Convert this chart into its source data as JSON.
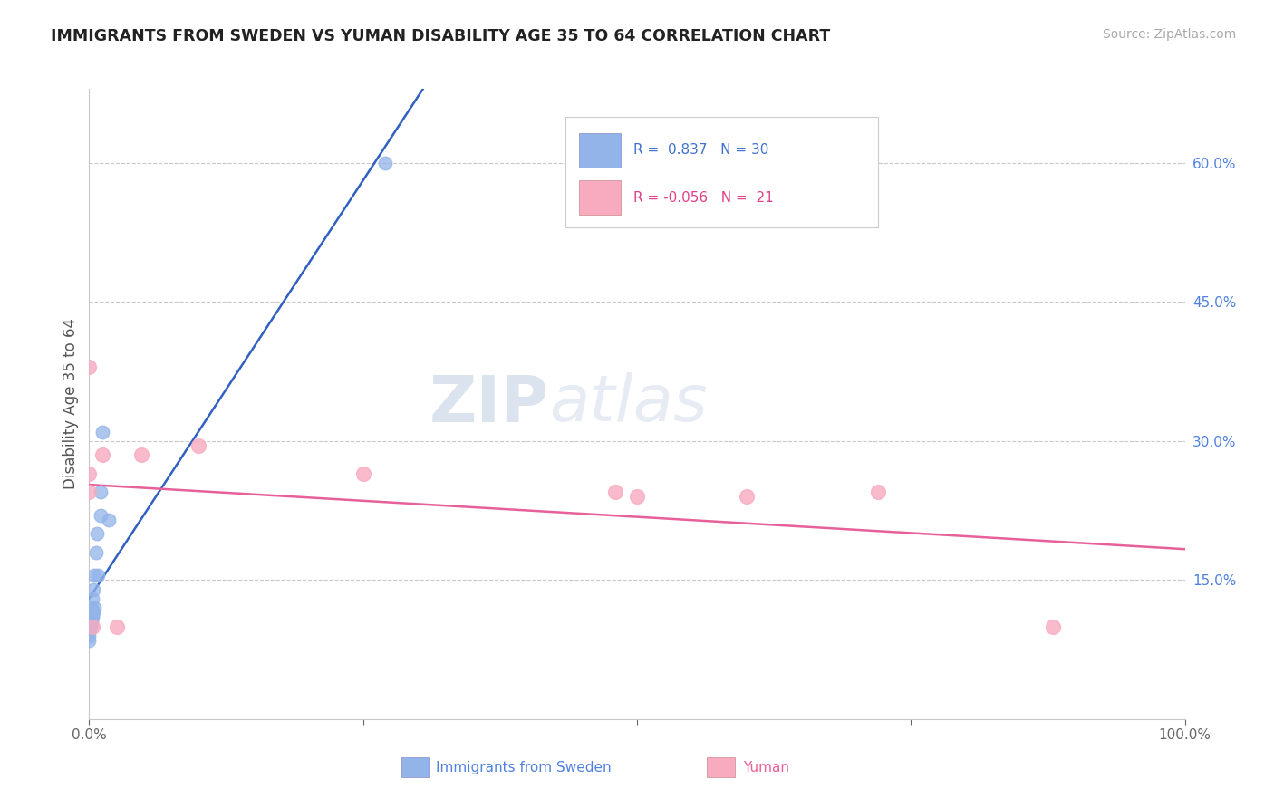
{
  "title": "IMMIGRANTS FROM SWEDEN VS YUMAN DISABILITY AGE 35 TO 64 CORRELATION CHART",
  "source": "Source: ZipAtlas.com",
  "ylabel": "Disability Age 35 to 64",
  "xlim": [
    0,
    1.0
  ],
  "ylim": [
    0,
    0.68
  ],
  "yticks_right": [
    0.15,
    0.3,
    0.45,
    0.6
  ],
  "ytick_labels_right": [
    "15.0%",
    "30.0%",
    "45.0%",
    "60.0%"
  ],
  "watermark_zip": "ZIP",
  "watermark_atlas": "atlas",
  "blue_color": "#92B4E8",
  "pink_color": "#F8AABF",
  "blue_line_color": "#3060C0",
  "pink_line_color": "#E8609A",
  "background_color": "#FFFFFF",
  "grid_color": "#C8C8C8",
  "title_color": "#222222",
  "source_color": "#AAAAAA",
  "legend_text_blue": "#4070D0",
  "legend_text_pink": "#E0408A",
  "right_tick_color": "#5080E0",
  "sweden_x": [
    0.0,
    0.0,
    0.0,
    0.0,
    0.0,
    0.0,
    0.001,
    0.001,
    0.001,
    0.001,
    0.001,
    0.002,
    0.002,
    0.002,
    0.002,
    0.003,
    0.003,
    0.003,
    0.004,
    0.004,
    0.005,
    0.005,
    0.006,
    0.007,
    0.008,
    0.01,
    0.01,
    0.012,
    0.018,
    0.27
  ],
  "sweden_y": [
    0.085,
    0.09,
    0.095,
    0.1,
    0.105,
    0.11,
    0.1,
    0.105,
    0.11,
    0.115,
    0.12,
    0.105,
    0.11,
    0.115,
    0.12,
    0.11,
    0.115,
    0.13,
    0.115,
    0.14,
    0.12,
    0.155,
    0.18,
    0.2,
    0.155,
    0.22,
    0.245,
    0.31,
    0.215,
    0.6
  ],
  "yuman_x": [
    0.0,
    0.0,
    0.0,
    0.003,
    0.012,
    0.025,
    0.048,
    0.1,
    0.25,
    0.48,
    0.5,
    0.6,
    0.72,
    0.88
  ],
  "yuman_y": [
    0.245,
    0.265,
    0.38,
    0.1,
    0.285,
    0.1,
    0.285,
    0.295,
    0.265,
    0.245,
    0.24,
    0.24,
    0.245,
    0.1
  ],
  "legend_label_blue": "Immigrants from Sweden",
  "legend_label_pink": "Yuman"
}
